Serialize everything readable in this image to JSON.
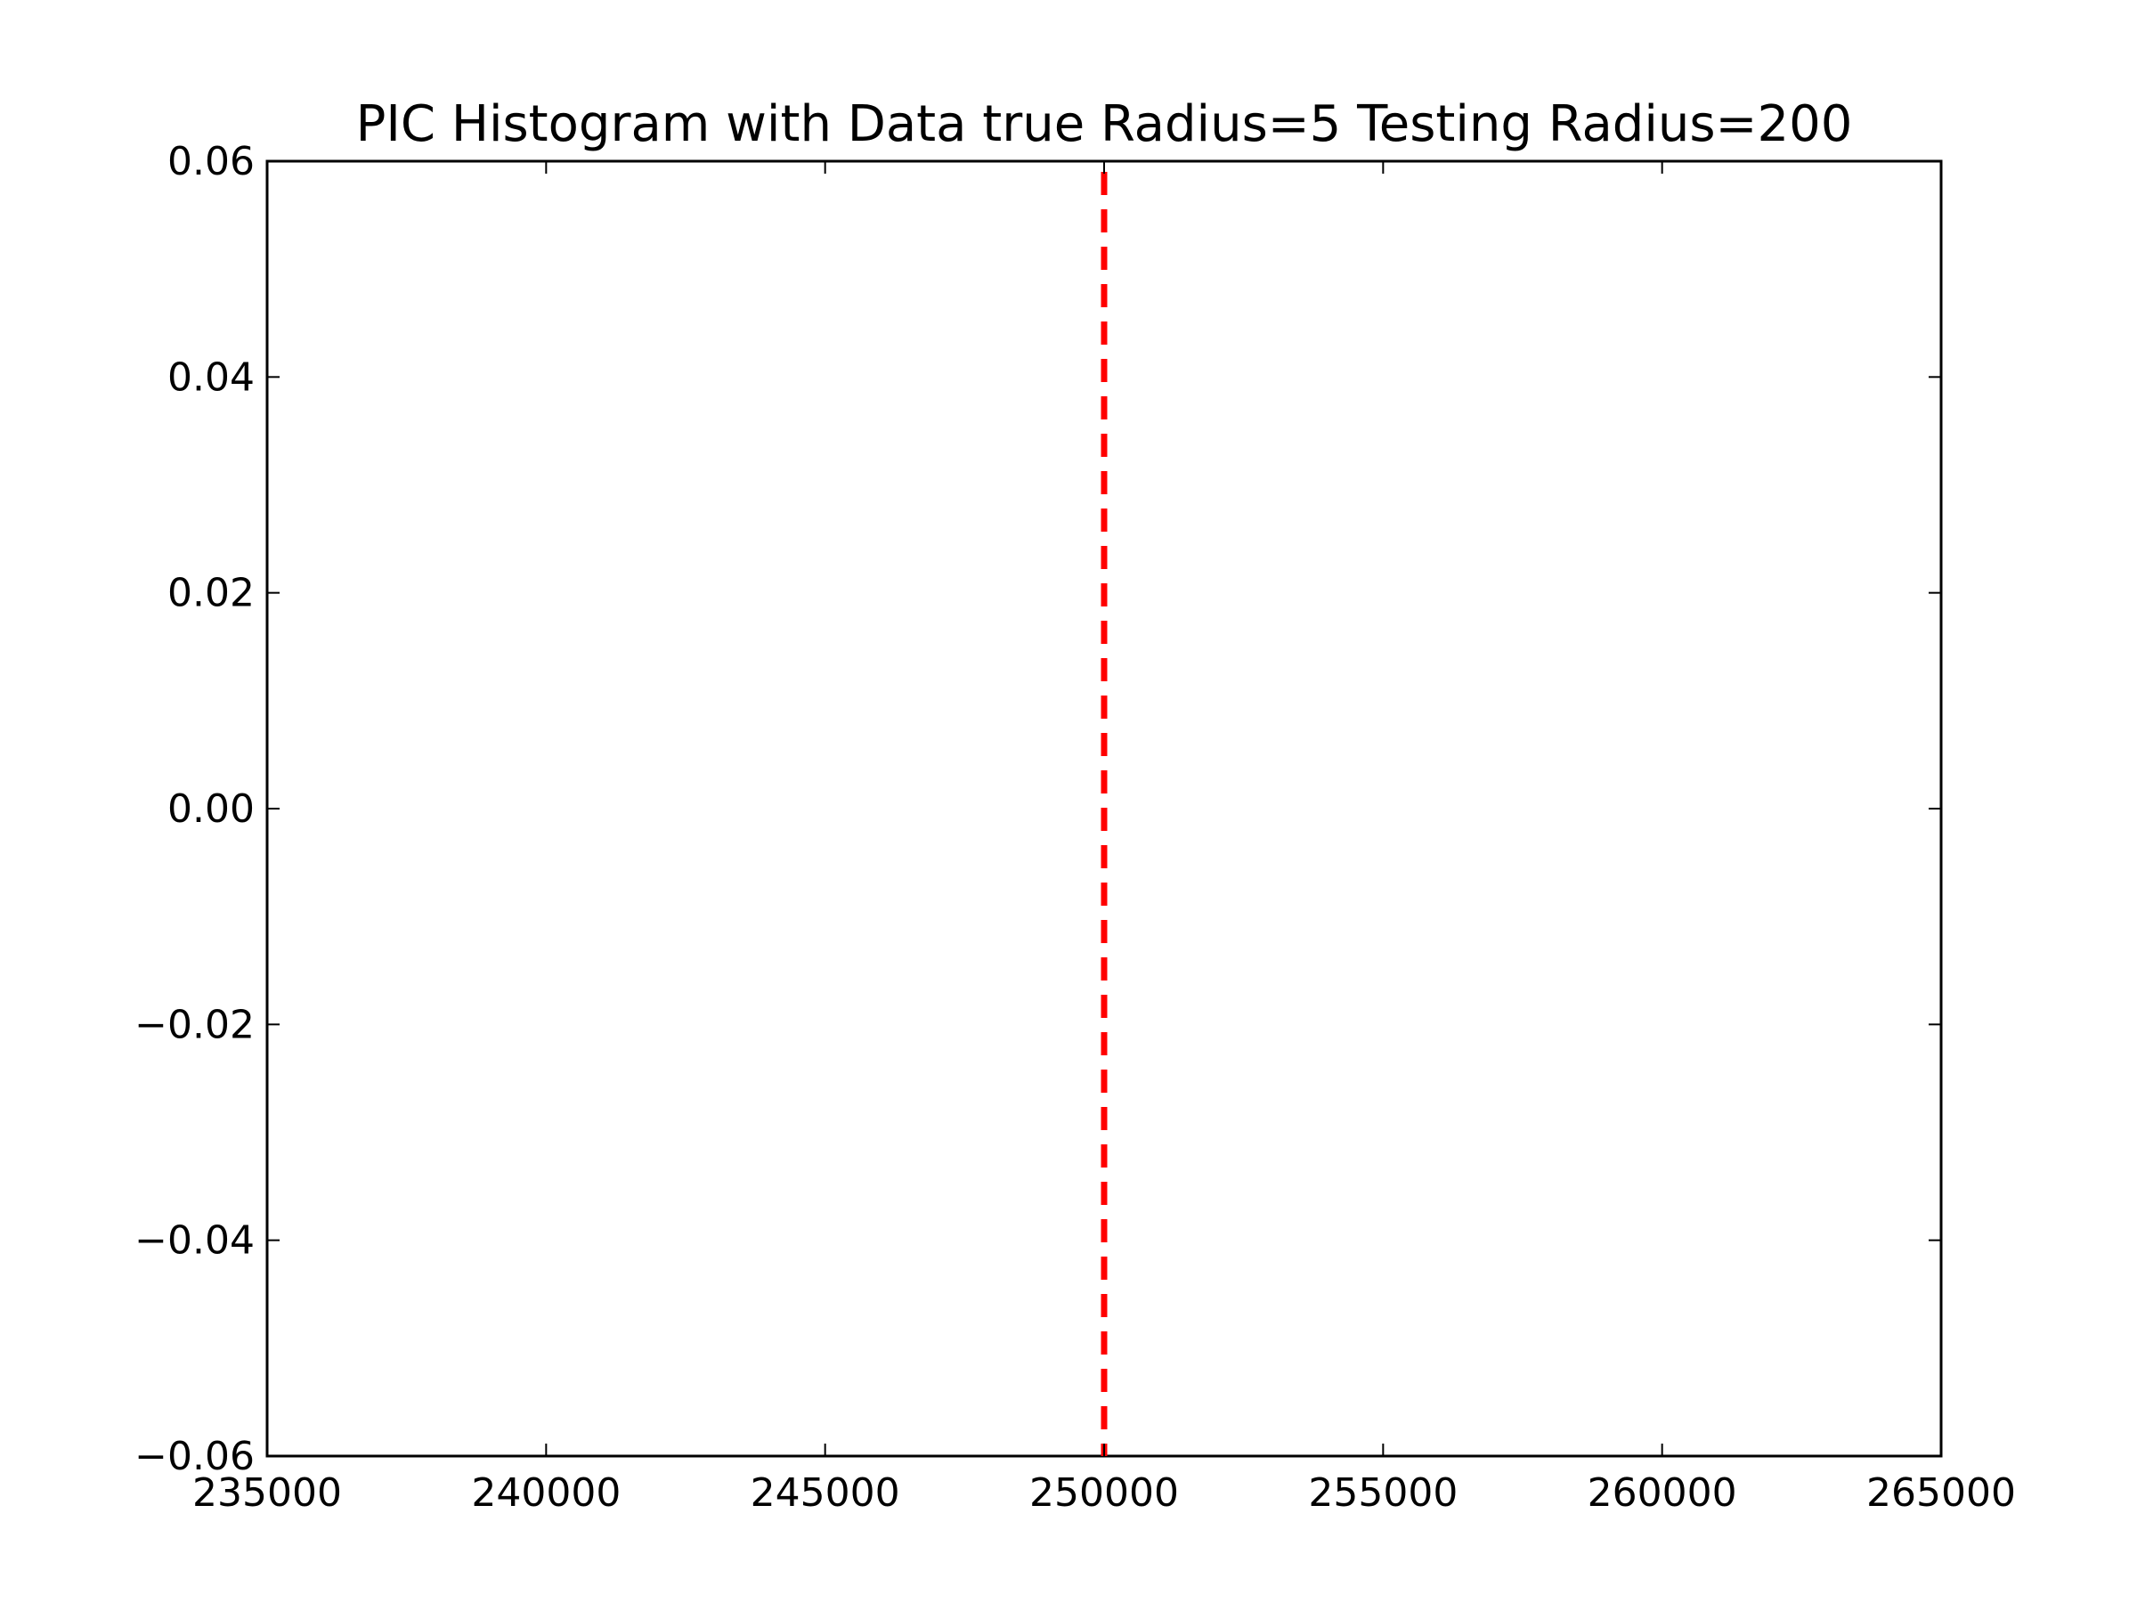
{
  "chart_data": {
    "type": "line",
    "title": "PIC Histogram with Data true Radius=5 Testing Radius=200",
    "xlabel": "",
    "ylabel": "",
    "xlim": [
      235000,
      265000
    ],
    "ylim": [
      -0.06,
      0.06
    ],
    "x_ticks": [
      235000,
      240000,
      245000,
      250000,
      255000,
      260000,
      265000
    ],
    "x_tick_labels": [
      "235000",
      "240000",
      "245000",
      "250000",
      "255000",
      "260000",
      "265000"
    ],
    "y_ticks": [
      0.06,
      0.04,
      0.02,
      0.0,
      -0.02,
      -0.04,
      -0.06
    ],
    "y_tick_labels": [
      "0.06",
      "0.04",
      "0.02",
      "0.00",
      "−0.02",
      "−0.04",
      "−0.06"
    ],
    "grid": false,
    "vlines": [
      {
        "x": 250000,
        "color": "#ff0000",
        "style": "dashed"
      }
    ],
    "series": []
  }
}
